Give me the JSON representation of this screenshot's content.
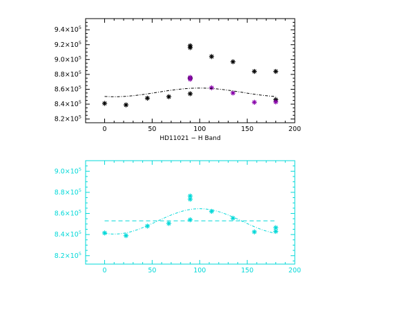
{
  "chart_data": [
    {
      "type": "scatter",
      "title": "",
      "xlabel": "HD11021 − H Band",
      "ylabel": "",
      "xlim": [
        -20,
        200
      ],
      "ylim": [
        815000,
        955000
      ],
      "x_ticks": [
        "0",
        "50",
        "100",
        "150",
        "200"
      ],
      "y_ticks": [
        {
          "value": 820000,
          "mantissa": "8.2",
          "exp": "5"
        },
        {
          "value": 840000,
          "mantissa": "8.4",
          "exp": "5"
        },
        {
          "value": 860000,
          "mantissa": "8.6",
          "exp": "5"
        },
        {
          "value": 880000,
          "mantissa": "8.8",
          "exp": "5"
        },
        {
          "value": 900000,
          "mantissa": "9.0",
          "exp": "5"
        },
        {
          "value": 920000,
          "mantissa": "9.2",
          "exp": "5"
        },
        {
          "value": 940000,
          "mantissa": "9.4",
          "exp": "5"
        }
      ],
      "axis_color": "#000000",
      "series": [
        {
          "marker": "asterisk",
          "color": "#000000",
          "points": [
            [
              0,
              841000
            ],
            [
              22.5,
              839000
            ],
            [
              45,
              848000
            ],
            [
              67.5,
              850000
            ],
            [
              90,
              854000
            ],
            [
              90,
              875000
            ],
            [
              90,
              916000
            ],
            [
              90,
              918500
            ],
            [
              112.5,
              904000
            ],
            [
              135,
              897000
            ],
            [
              157.5,
              884000
            ],
            [
              180,
              884000
            ],
            [
              180,
              846000
            ]
          ]
        },
        {
          "marker": "asterisk",
          "color": "#8800aa",
          "points": [
            [
              90,
              873500
            ],
            [
              90,
              876000
            ],
            [
              112.5,
              862000
            ],
            [
              135,
              855000
            ],
            [
              157.5,
              842500
            ],
            [
              180,
              843000
            ]
          ]
        },
        {
          "type": "line",
          "style": "dash-dot",
          "color": "#000000",
          "model": "cosine",
          "x_range": [
            0,
            180
          ],
          "offset": 855800,
          "amplitude": 5800,
          "period": 180,
          "phase_deg": 100
        }
      ]
    },
    {
      "type": "scatter",
      "title": "",
      "xlabel": "",
      "ylabel": "",
      "xlim": [
        -20,
        200
      ],
      "ylim": [
        812000,
        910000
      ],
      "x_ticks": [
        "0",
        "50",
        "100",
        "150",
        "200"
      ],
      "y_ticks": [
        {
          "value": 820000,
          "mantissa": "8.2",
          "exp": "5"
        },
        {
          "value": 840000,
          "mantissa": "8.4",
          "exp": "5"
        },
        {
          "value": 860000,
          "mantissa": "8.6",
          "exp": "5"
        },
        {
          "value": 880000,
          "mantissa": "8.8",
          "exp": "5"
        },
        {
          "value": 900000,
          "mantissa": "9.0",
          "exp": "5"
        }
      ],
      "axis_color": "#00d8d8",
      "series": [
        {
          "marker": "asterisk",
          "color": "#00d8d8",
          "points": [
            [
              0,
              841500
            ],
            [
              22.5,
              839000
            ],
            [
              45,
              848000
            ],
            [
              67.5,
              850500
            ],
            [
              90,
              854000
            ],
            [
              90,
              873500
            ],
            [
              90,
              876500
            ],
            [
              112.5,
              862000
            ],
            [
              135,
              855500
            ],
            [
              157.5,
              842500
            ],
            [
              180,
              843000
            ],
            [
              180,
              846500
            ]
          ]
        },
        {
          "type": "line",
          "style": "dash-dot",
          "color": "#00d8d8",
          "model": "cosine",
          "x_range": [
            0,
            180
          ],
          "offset": 852500,
          "amplitude": 12000,
          "period": 180,
          "phase_deg": 100
        },
        {
          "type": "line",
          "style": "dashed",
          "color": "#00d8d8",
          "model": "constant",
          "x_range": [
            0,
            180
          ],
          "value": 853000
        }
      ]
    }
  ]
}
